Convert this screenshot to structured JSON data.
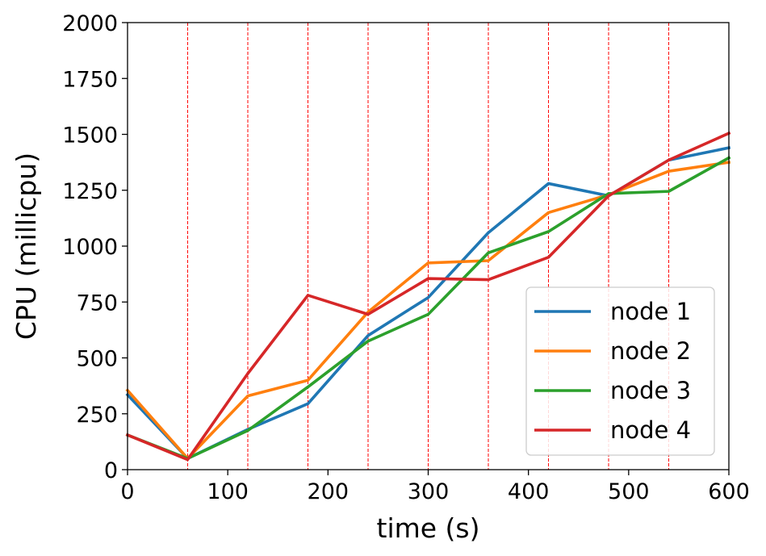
{
  "chart_data": {
    "type": "line",
    "title": "",
    "xlabel": "time (s)",
    "ylabel": "CPU (millicpu)",
    "xlim": [
      0,
      600
    ],
    "ylim": [
      0,
      2000
    ],
    "xticks": [
      "0",
      "100",
      "200",
      "300",
      "400",
      "500",
      "600"
    ],
    "yticks": [
      "0",
      "250",
      "500",
      "750",
      "1000",
      "1250",
      "1500",
      "1750",
      "2000"
    ],
    "vlines": [
      60,
      120,
      180,
      240,
      300,
      360,
      420,
      480,
      540
    ],
    "vline_color": "#ff0000",
    "grid": false,
    "legend_position": "lower-right",
    "x": [
      0,
      60,
      120,
      180,
      240,
      300,
      360,
      420,
      480,
      540,
      600
    ],
    "series": [
      {
        "name": "node 1",
        "color": "#1f77b4",
        "values": [
          335,
          50,
          180,
          295,
          600,
          770,
          1060,
          1280,
          1225,
          1385,
          1440
        ]
      },
      {
        "name": "node 2",
        "color": "#ff7f0e",
        "values": [
          355,
          50,
          330,
          400,
          705,
          925,
          935,
          1150,
          1230,
          1335,
          1375
        ]
      },
      {
        "name": "node 3",
        "color": "#2ca02c",
        "values": [
          155,
          50,
          175,
          370,
          575,
          695,
          970,
          1065,
          1235,
          1245,
          1395
        ]
      },
      {
        "name": "node 4",
        "color": "#d62728",
        "values": [
          155,
          45,
          430,
          780,
          695,
          855,
          850,
          950,
          1225,
          1385,
          1505
        ]
      }
    ]
  }
}
